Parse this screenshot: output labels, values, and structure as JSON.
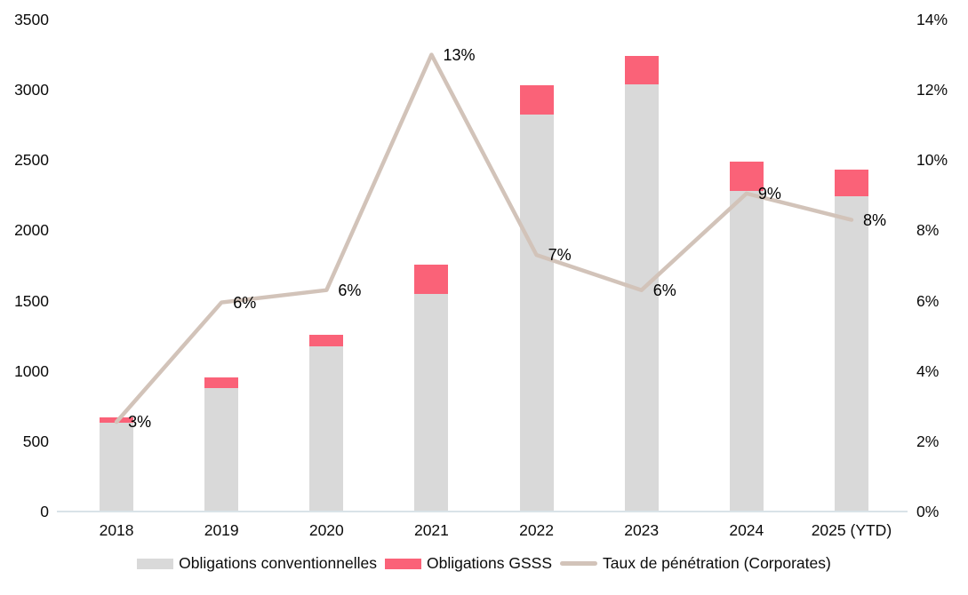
{
  "chart_data": {
    "type": "combo-stacked-bar-line",
    "categories": [
      "2018",
      "2019",
      "2020",
      "2021",
      "2022",
      "2023",
      "2024",
      "2025 (YTD)"
    ],
    "series": [
      {
        "name": "Obligations conventionnelles",
        "type": "bar",
        "stacked": true,
        "axis": "left",
        "color": "#d9d9d9",
        "values": [
          630,
          880,
          1175,
          1545,
          2825,
          3040,
          2280,
          2240
        ]
      },
      {
        "name": "Obligations GSSS",
        "type": "bar",
        "stacked": true,
        "axis": "left",
        "color": "#fa6278",
        "values": [
          40,
          75,
          85,
          210,
          210,
          200,
          210,
          190
        ]
      },
      {
        "name": "Taux de pénétration (Corporates)",
        "type": "line",
        "axis": "right",
        "color": "#d2c3b9",
        "values": [
          2.55,
          5.95,
          6.3,
          13.0,
          7.3,
          6.3,
          9.05,
          8.3
        ],
        "point_labels": [
          "3%",
          "6%",
          "6%",
          "13%",
          "7%",
          "6%",
          "9%",
          "8%"
        ]
      }
    ],
    "left_axis": {
      "min": 0,
      "max": 3500,
      "step": 500,
      "tick_labels": [
        "3500",
        "3000",
        "2500",
        "2000",
        "1500",
        "1000",
        "500",
        "0"
      ]
    },
    "right_axis": {
      "min": 0,
      "max": 14,
      "step": 2,
      "tick_labels": [
        "14%",
        "12%",
        "10%",
        "8%",
        "6%",
        "4%",
        "2%",
        "0%"
      ]
    },
    "grid": false,
    "legend_position": "bottom",
    "baseline_color": "#d9e3e8",
    "background_color": "#ffffff",
    "text_color": "#0b0b0b"
  },
  "legend": {
    "items": [
      {
        "label": "Obligations conventionnelles",
        "swatch": "bar",
        "color": "#d9d9d9"
      },
      {
        "label": "Obligations GSSS",
        "swatch": "bar",
        "color": "#fa6278"
      },
      {
        "label": "Taux de pénétration (Corporates)",
        "swatch": "line",
        "color": "#d2c3b9"
      }
    ]
  }
}
